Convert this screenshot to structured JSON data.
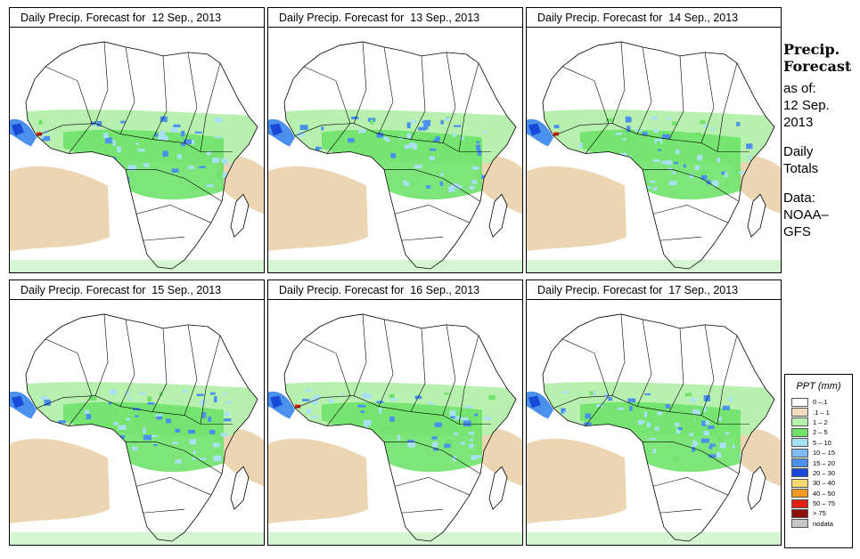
{
  "panels": [
    {
      "title_prefix": "Daily Precip. Forecast for",
      "date": "12 Sep., 2013"
    },
    {
      "title_prefix": "Daily Precip. Forecast for",
      "date": "13 Sep., 2013"
    },
    {
      "title_prefix": "Daily Precip. Forecast for",
      "date": "14 Sep., 2013"
    },
    {
      "title_prefix": "Daily Precip. Forecast for",
      "date": "15 Sep., 2013"
    },
    {
      "title_prefix": "Daily Precip. Forecast for",
      "date": "16 Sep., 2013"
    },
    {
      "title_prefix": "Daily Precip. Forecast for",
      "date": "17 Sep., 2013"
    }
  ],
  "side": {
    "heading_1": "Precip.",
    "heading_2": "Forecast",
    "asof_1": "as of:",
    "asof_2": "12 Sep.",
    "asof_3": "2013",
    "totals_1": "Daily",
    "totals_2": "Totals",
    "data_1": "Data:",
    "data_2": "NOAA–",
    "data_3": "GFS"
  },
  "legend": {
    "title": "PPT (mm)",
    "items": [
      {
        "label": "0 –.1",
        "color": "#ffffff"
      },
      {
        "label": ".1 – 1",
        "color": "#f2dcc0"
      },
      {
        "label": "1 – 2",
        "color": "#b8f0b0"
      },
      {
        "label": "2 – 5",
        "color": "#6fe26a"
      },
      {
        "label": "5 – 10",
        "color": "#a8e0f4"
      },
      {
        "label": "10 – 15",
        "color": "#7cbcf0"
      },
      {
        "label": "15 – 20",
        "color": "#4a90ec"
      },
      {
        "label": "20 – 30",
        "color": "#1848d8"
      },
      {
        "label": "30 – 40",
        "color": "#f8d870"
      },
      {
        "label": "40 – 50",
        "color": "#f09820"
      },
      {
        "label": "50 – 75",
        "color": "#e02010"
      },
      {
        "label": "> 75",
        "color": "#8a1010"
      },
      {
        "label": "nodata",
        "color": "#c8c8c8"
      }
    ]
  },
  "colors": {
    "dry": "#ecd5b2",
    "light": "#b8f0b0",
    "moderate": "#6fe26a",
    "wet": "#a8e0f4",
    "heavy": "#4a90ec",
    "intense": "#1848d8",
    "extreme": "#e02010"
  }
}
